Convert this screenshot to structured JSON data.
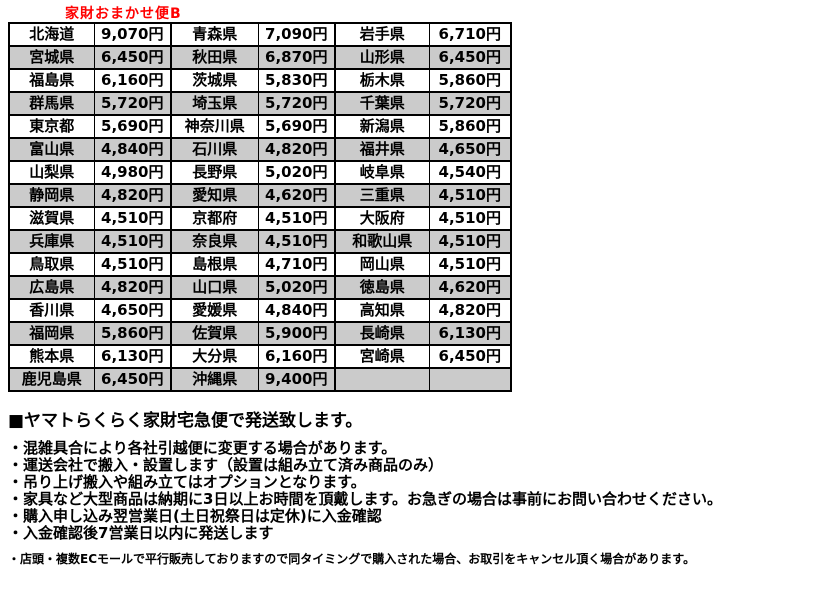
{
  "title": "家財おまかせ便B",
  "colors": {
    "title_red": "#ff0000",
    "row_alt_gray": "#cbcbcb",
    "border_black": "#000000",
    "background": "#ffffff"
  },
  "shipping_table": {
    "rows": [
      [
        {
          "pref": "北海道",
          "price": "9,070円"
        },
        {
          "pref": "青森県",
          "price": "7,090円"
        },
        {
          "pref": "岩手県",
          "price": "6,710円"
        }
      ],
      [
        {
          "pref": "宮城県",
          "price": "6,450円"
        },
        {
          "pref": "秋田県",
          "price": "6,870円"
        },
        {
          "pref": "山形県",
          "price": "6,450円"
        }
      ],
      [
        {
          "pref": "福島県",
          "price": "6,160円"
        },
        {
          "pref": "茨城県",
          "price": "5,830円"
        },
        {
          "pref": "栃木県",
          "price": "5,860円"
        }
      ],
      [
        {
          "pref": "群馬県",
          "price": "5,720円"
        },
        {
          "pref": "埼玉県",
          "price": "5,720円"
        },
        {
          "pref": "千葉県",
          "price": "5,720円"
        }
      ],
      [
        {
          "pref": "東京都",
          "price": "5,690円"
        },
        {
          "pref": "神奈川県",
          "price": "5,690円"
        },
        {
          "pref": "新潟県",
          "price": "5,860円"
        }
      ],
      [
        {
          "pref": "富山県",
          "price": "4,840円"
        },
        {
          "pref": "石川県",
          "price": "4,820円"
        },
        {
          "pref": "福井県",
          "price": "4,650円"
        }
      ],
      [
        {
          "pref": "山梨県",
          "price": "4,980円"
        },
        {
          "pref": "長野県",
          "price": "5,020円"
        },
        {
          "pref": "岐阜県",
          "price": "4,540円"
        }
      ],
      [
        {
          "pref": "静岡県",
          "price": "4,820円"
        },
        {
          "pref": "愛知県",
          "price": "4,620円"
        },
        {
          "pref": "三重県",
          "price": "4,510円"
        }
      ],
      [
        {
          "pref": "滋賀県",
          "price": "4,510円"
        },
        {
          "pref": "京都府",
          "price": "4,510円"
        },
        {
          "pref": "大阪府",
          "price": "4,510円"
        }
      ],
      [
        {
          "pref": "兵庫県",
          "price": "4,510円"
        },
        {
          "pref": "奈良県",
          "price": "4,510円"
        },
        {
          "pref": "和歌山県",
          "price": "4,510円"
        }
      ],
      [
        {
          "pref": "鳥取県",
          "price": "4,510円"
        },
        {
          "pref": "島根県",
          "price": "4,710円"
        },
        {
          "pref": "岡山県",
          "price": "4,510円"
        }
      ],
      [
        {
          "pref": "広島県",
          "price": "4,820円"
        },
        {
          "pref": "山口県",
          "price": "5,020円"
        },
        {
          "pref": "徳島県",
          "price": "4,620円"
        }
      ],
      [
        {
          "pref": "香川県",
          "price": "4,650円"
        },
        {
          "pref": "愛媛県",
          "price": "4,840円"
        },
        {
          "pref": "高知県",
          "price": "4,820円"
        }
      ],
      [
        {
          "pref": "福岡県",
          "price": "5,860円"
        },
        {
          "pref": "佐賀県",
          "price": "5,900円"
        },
        {
          "pref": "長崎県",
          "price": "6,130円"
        }
      ],
      [
        {
          "pref": "熊本県",
          "price": "6,130円"
        },
        {
          "pref": "大分県",
          "price": "6,160円"
        },
        {
          "pref": "宮崎県",
          "price": "6,450円"
        }
      ],
      [
        {
          "pref": "鹿児島県",
          "price": "6,450円"
        },
        {
          "pref": "沖縄県",
          "price": "9,400円"
        },
        {
          "pref": "",
          "price": ""
        }
      ]
    ]
  },
  "notes": {
    "heading": "■ヤマトらくらく家財宅急便で発送致します。",
    "bullets": [
      "・混雑具合により各社引越便に変更する場合があります。",
      "・運送会社で搬入・設置します（設置は組み立て済み商品のみ）",
      "・吊り上げ搬入や組み立てはオプションとなります。",
      "・家具など大型商品は納期に3日以上お時間を頂戴します。お急ぎの場合は事前にお問い合わせください。",
      "・購入申し込み翌営業日(土日祝祭日は定休)に入金確認",
      "・入金確認後7営業日以内に発送します"
    ],
    "footnote": "・店頭・複数ECモールで平行販売しておりますので同タイミングで購入された場合、お取引をキャンセル頂く場合があります。"
  }
}
